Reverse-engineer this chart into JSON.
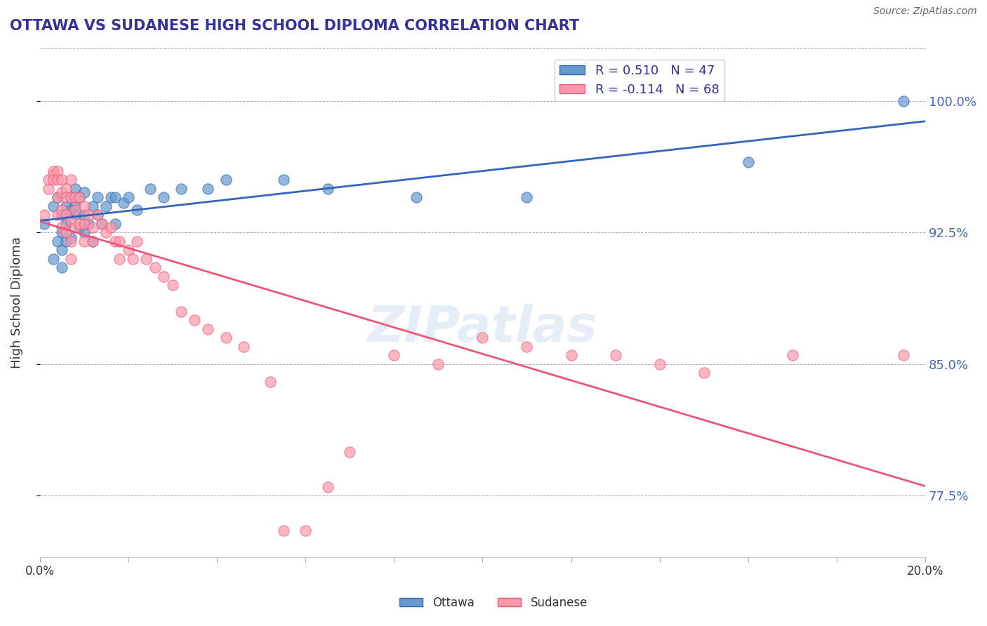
{
  "title": "OTTAWA VS SUDANESE HIGH SCHOOL DIPLOMA CORRELATION CHART",
  "source": "Source: ZipAtlas.com",
  "ylabel": "High School Diploma",
  "xlim": [
    0.0,
    0.2
  ],
  "ylim": [
    0.74,
    1.03
  ],
  "yticks": [
    0.775,
    0.85,
    0.925,
    1.0
  ],
  "ytick_labels": [
    "77.5%",
    "85.0%",
    "92.5%",
    "100.0%"
  ],
  "xticks": [
    0.0,
    0.02,
    0.04,
    0.06,
    0.08,
    0.1,
    0.12,
    0.14,
    0.16,
    0.18,
    0.2
  ],
  "ottawa_R": 0.51,
  "ottawa_N": 47,
  "sudanese_R": -0.114,
  "sudanese_N": 68,
  "ottawa_color": "#6699CC",
  "sudanese_color": "#FF99AA",
  "ottawa_line_color": "#3366BB",
  "sudanese_line_color": "#EE5577",
  "watermark": "ZIPatlas",
  "background_color": "#FFFFFF",
  "ottawa_x": [
    0.001,
    0.003,
    0.003,
    0.004,
    0.004,
    0.005,
    0.005,
    0.005,
    0.005,
    0.006,
    0.006,
    0.006,
    0.007,
    0.007,
    0.007,
    0.008,
    0.008,
    0.008,
    0.009,
    0.009,
    0.01,
    0.01,
    0.01,
    0.011,
    0.012,
    0.012,
    0.013,
    0.013,
    0.014,
    0.015,
    0.016,
    0.017,
    0.017,
    0.019,
    0.02,
    0.022,
    0.025,
    0.028,
    0.032,
    0.038,
    0.042,
    0.055,
    0.065,
    0.085,
    0.11,
    0.16,
    0.195
  ],
  "ottawa_y": [
    0.93,
    0.91,
    0.94,
    0.92,
    0.945,
    0.935,
    0.925,
    0.915,
    0.905,
    0.94,
    0.93,
    0.92,
    0.945,
    0.938,
    0.922,
    0.935,
    0.94,
    0.95,
    0.928,
    0.945,
    0.935,
    0.948,
    0.925,
    0.93,
    0.94,
    0.92,
    0.935,
    0.945,
    0.93,
    0.94,
    0.945,
    0.93,
    0.945,
    0.942,
    0.945,
    0.938,
    0.95,
    0.945,
    0.95,
    0.95,
    0.955,
    0.955,
    0.95,
    0.945,
    0.945,
    0.965,
    1.0
  ],
  "sudanese_x": [
    0.001,
    0.002,
    0.002,
    0.003,
    0.003,
    0.003,
    0.004,
    0.004,
    0.004,
    0.004,
    0.005,
    0.005,
    0.005,
    0.005,
    0.006,
    0.006,
    0.006,
    0.006,
    0.007,
    0.007,
    0.007,
    0.007,
    0.007,
    0.008,
    0.008,
    0.008,
    0.009,
    0.009,
    0.01,
    0.01,
    0.01,
    0.011,
    0.012,
    0.012,
    0.013,
    0.014,
    0.015,
    0.016,
    0.017,
    0.018,
    0.018,
    0.02,
    0.021,
    0.022,
    0.024,
    0.026,
    0.028,
    0.03,
    0.032,
    0.035,
    0.038,
    0.042,
    0.046,
    0.052,
    0.055,
    0.06,
    0.065,
    0.07,
    0.08,
    0.09,
    0.1,
    0.11,
    0.12,
    0.13,
    0.14,
    0.15,
    0.17,
    0.195
  ],
  "sudanese_y": [
    0.935,
    0.95,
    0.955,
    0.96,
    0.958,
    0.955,
    0.96,
    0.955,
    0.945,
    0.935,
    0.955,
    0.948,
    0.938,
    0.928,
    0.95,
    0.945,
    0.935,
    0.925,
    0.955,
    0.945,
    0.932,
    0.92,
    0.91,
    0.945,
    0.938,
    0.928,
    0.945,
    0.93,
    0.94,
    0.93,
    0.92,
    0.935,
    0.928,
    0.92,
    0.935,
    0.93,
    0.925,
    0.928,
    0.92,
    0.92,
    0.91,
    0.915,
    0.91,
    0.92,
    0.91,
    0.905,
    0.9,
    0.895,
    0.88,
    0.875,
    0.87,
    0.865,
    0.86,
    0.84,
    0.755,
    0.755,
    0.78,
    0.8,
    0.855,
    0.85,
    0.865,
    0.86,
    0.855,
    0.855,
    0.85,
    0.845,
    0.855,
    0.855
  ]
}
